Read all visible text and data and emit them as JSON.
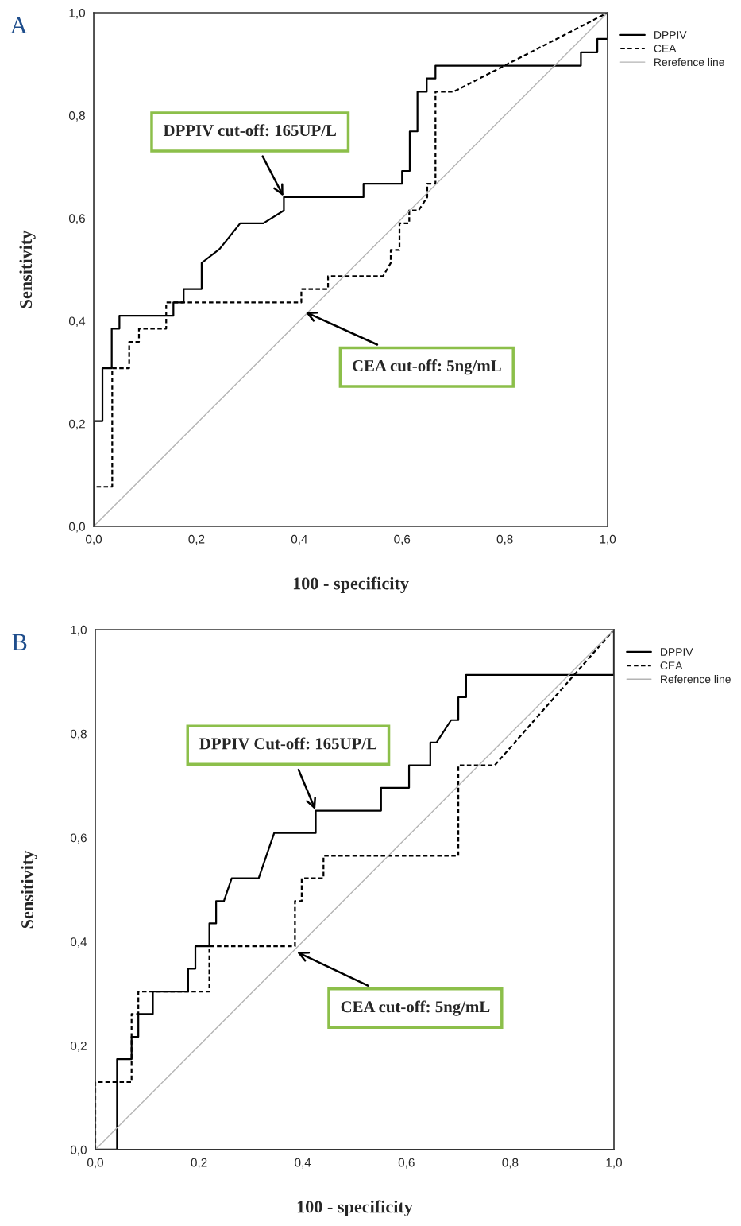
{
  "chart_data": [
    {
      "type": "line",
      "title": "A",
      "xlabel": "100 - specificity",
      "ylabel": "Sensitivity",
      "xlim": [
        0,
        1
      ],
      "ylim": [
        0,
        1
      ],
      "xticks": [
        {
          "value": 0,
          "label": "0,0"
        },
        {
          "value": 0.2,
          "label": "0,2"
        },
        {
          "value": 0.4,
          "label": "0,4"
        },
        {
          "value": 0.6,
          "label": "0,6"
        },
        {
          "value": 0.8,
          "label": "0,8"
        },
        {
          "value": 1,
          "label": "1,0"
        }
      ],
      "yticks": [
        {
          "value": 0,
          "label": "0,0"
        },
        {
          "value": 0.2,
          "label": "0,2"
        },
        {
          "value": 0.4,
          "label": "0,4"
        },
        {
          "value": 0.6,
          "label": "0,6"
        },
        {
          "value": 0.8,
          "label": "0,8"
        },
        {
          "value": 1,
          "label": "1,0"
        }
      ],
      "grid": false,
      "legend": "top right",
      "marker": "none",
      "series": [
        {
          "name": "DPPIV",
          "color": "#000000",
          "line_style": "solid",
          "x": [
            0,
            0,
            0.017,
            0.017,
            0.035,
            0.035,
            0.05,
            0.05,
            0.155,
            0.155,
            0.175,
            0.175,
            0.21,
            0.21,
            0.245,
            0.285,
            0.33,
            0.37,
            0.37,
            0.525,
            0.525,
            0.6,
            0.6,
            0.615,
            0.615,
            0.63,
            0.63,
            0.648,
            0.648,
            0.665,
            0.665,
            0.948,
            0.948,
            0.98,
            0.98,
            1,
            1
          ],
          "values": [
            0,
            0.205,
            0.205,
            0.308,
            0.308,
            0.385,
            0.385,
            0.41,
            0.41,
            0.436,
            0.436,
            0.462,
            0.462,
            0.513,
            0.54,
            0.59,
            0.59,
            0.615,
            0.641,
            0.641,
            0.667,
            0.667,
            0.692,
            0.692,
            0.769,
            0.769,
            0.846,
            0.846,
            0.872,
            0.872,
            0.897,
            0.897,
            0.923,
            0.923,
            0.949,
            0.949,
            1
          ]
        },
        {
          "name": "CEA",
          "color": "#000000",
          "line_style": "dashed",
          "x": [
            0,
            0,
            0.036,
            0.036,
            0.069,
            0.069,
            0.088,
            0.088,
            0.141,
            0.141,
            0.404,
            0.404,
            0.456,
            0.456,
            0.563,
            0.578,
            0.578,
            0.595,
            0.595,
            0.614,
            0.614,
            0.632,
            0.649,
            0.649,
            0.665,
            0.665,
            0.7,
            1
          ],
          "values": [
            0,
            0.077,
            0.077,
            0.308,
            0.308,
            0.359,
            0.359,
            0.385,
            0.385,
            0.436,
            0.436,
            0.462,
            0.462,
            0.487,
            0.487,
            0.513,
            0.538,
            0.538,
            0.59,
            0.59,
            0.615,
            0.615,
            0.641,
            0.667,
            0.667,
            0.846,
            0.846,
            1
          ]
        },
        {
          "name": "Rerefence line",
          "color": "#b4b4b4",
          "line_style": "solid",
          "x": [
            0,
            1
          ],
          "values": [
            0,
            1
          ]
        }
      ],
      "annotations": [
        {
          "text": "DPPIV cut-off: 165UP/L",
          "x": 0.37,
          "y": 0.641
        },
        {
          "text": "CEA cut-off: 5ng/mL",
          "x": 0.41,
          "y": 0.418
        }
      ]
    },
    {
      "type": "line",
      "title": "B",
      "xlabel": "100 - specificity",
      "ylabel": "Sensitivity",
      "xlim": [
        0,
        1
      ],
      "ylim": [
        0,
        1
      ],
      "xticks": [
        {
          "value": 0,
          "label": "0,0"
        },
        {
          "value": 0.2,
          "label": "0,2"
        },
        {
          "value": 0.4,
          "label": "0,4"
        },
        {
          "value": 0.6,
          "label": "0,6"
        },
        {
          "value": 0.8,
          "label": "0,8"
        },
        {
          "value": 1,
          "label": "1,0"
        }
      ],
      "yticks": [
        {
          "value": 0,
          "label": "0,0"
        },
        {
          "value": 0.2,
          "label": "0,2"
        },
        {
          "value": 0.4,
          "label": "0,4"
        },
        {
          "value": 0.6,
          "label": "0,6"
        },
        {
          "value": 0.8,
          "label": "0,8"
        },
        {
          "value": 1,
          "label": "1,0"
        }
      ],
      "grid": false,
      "legend": "top right",
      "marker": "none",
      "series": [
        {
          "name": "DPPIV",
          "color": "#000000",
          "line_style": "solid",
          "x": [
            0,
            0.042,
            0.042,
            0.07,
            0.07,
            0.083,
            0.083,
            0.111,
            0.111,
            0.179,
            0.179,
            0.193,
            0.193,
            0.22,
            0.22,
            0.233,
            0.233,
            0.248,
            0.263,
            0.315,
            0.345,
            0.425,
            0.425,
            0.551,
            0.551,
            0.605,
            0.605,
            0.646,
            0.646,
            0.658,
            0.686,
            0.7,
            0.7,
            0.715,
            0.715,
            1,
            1
          ],
          "values": [
            0,
            0,
            0.174,
            0.174,
            0.217,
            0.217,
            0.261,
            0.261,
            0.304,
            0.304,
            0.348,
            0.348,
            0.391,
            0.391,
            0.435,
            0.435,
            0.478,
            0.478,
            0.522,
            0.522,
            0.609,
            0.609,
            0.652,
            0.652,
            0.696,
            0.696,
            0.739,
            0.739,
            0.783,
            0.783,
            0.826,
            0.826,
            0.87,
            0.87,
            0.913,
            0.913,
            1
          ]
        },
        {
          "name": "CEA",
          "color": "#000000",
          "line_style": "dashed",
          "x": [
            0,
            0,
            0.07,
            0.07,
            0.083,
            0.083,
            0.22,
            0.22,
            0.385,
            0.385,
            0.398,
            0.398,
            0.44,
            0.44,
            0.7,
            0.7,
            0.77,
            1
          ],
          "values": [
            0,
            0.13,
            0.13,
            0.261,
            0.261,
            0.304,
            0.304,
            0.391,
            0.391,
            0.478,
            0.478,
            0.522,
            0.522,
            0.565,
            0.565,
            0.739,
            0.739,
            1
          ]
        },
        {
          "name": "Reference line",
          "color": "#b4b4b4",
          "line_style": "solid",
          "x": [
            0,
            1
          ],
          "values": [
            0,
            1
          ]
        }
      ],
      "annotations": [
        {
          "text": "DPPIV Cut-off: 165UP/L",
          "x": 0.425,
          "y": 0.652
        },
        {
          "text": "CEA cut-off: 5ng/mL",
          "x": 0.387,
          "y": 0.381
        }
      ]
    }
  ]
}
